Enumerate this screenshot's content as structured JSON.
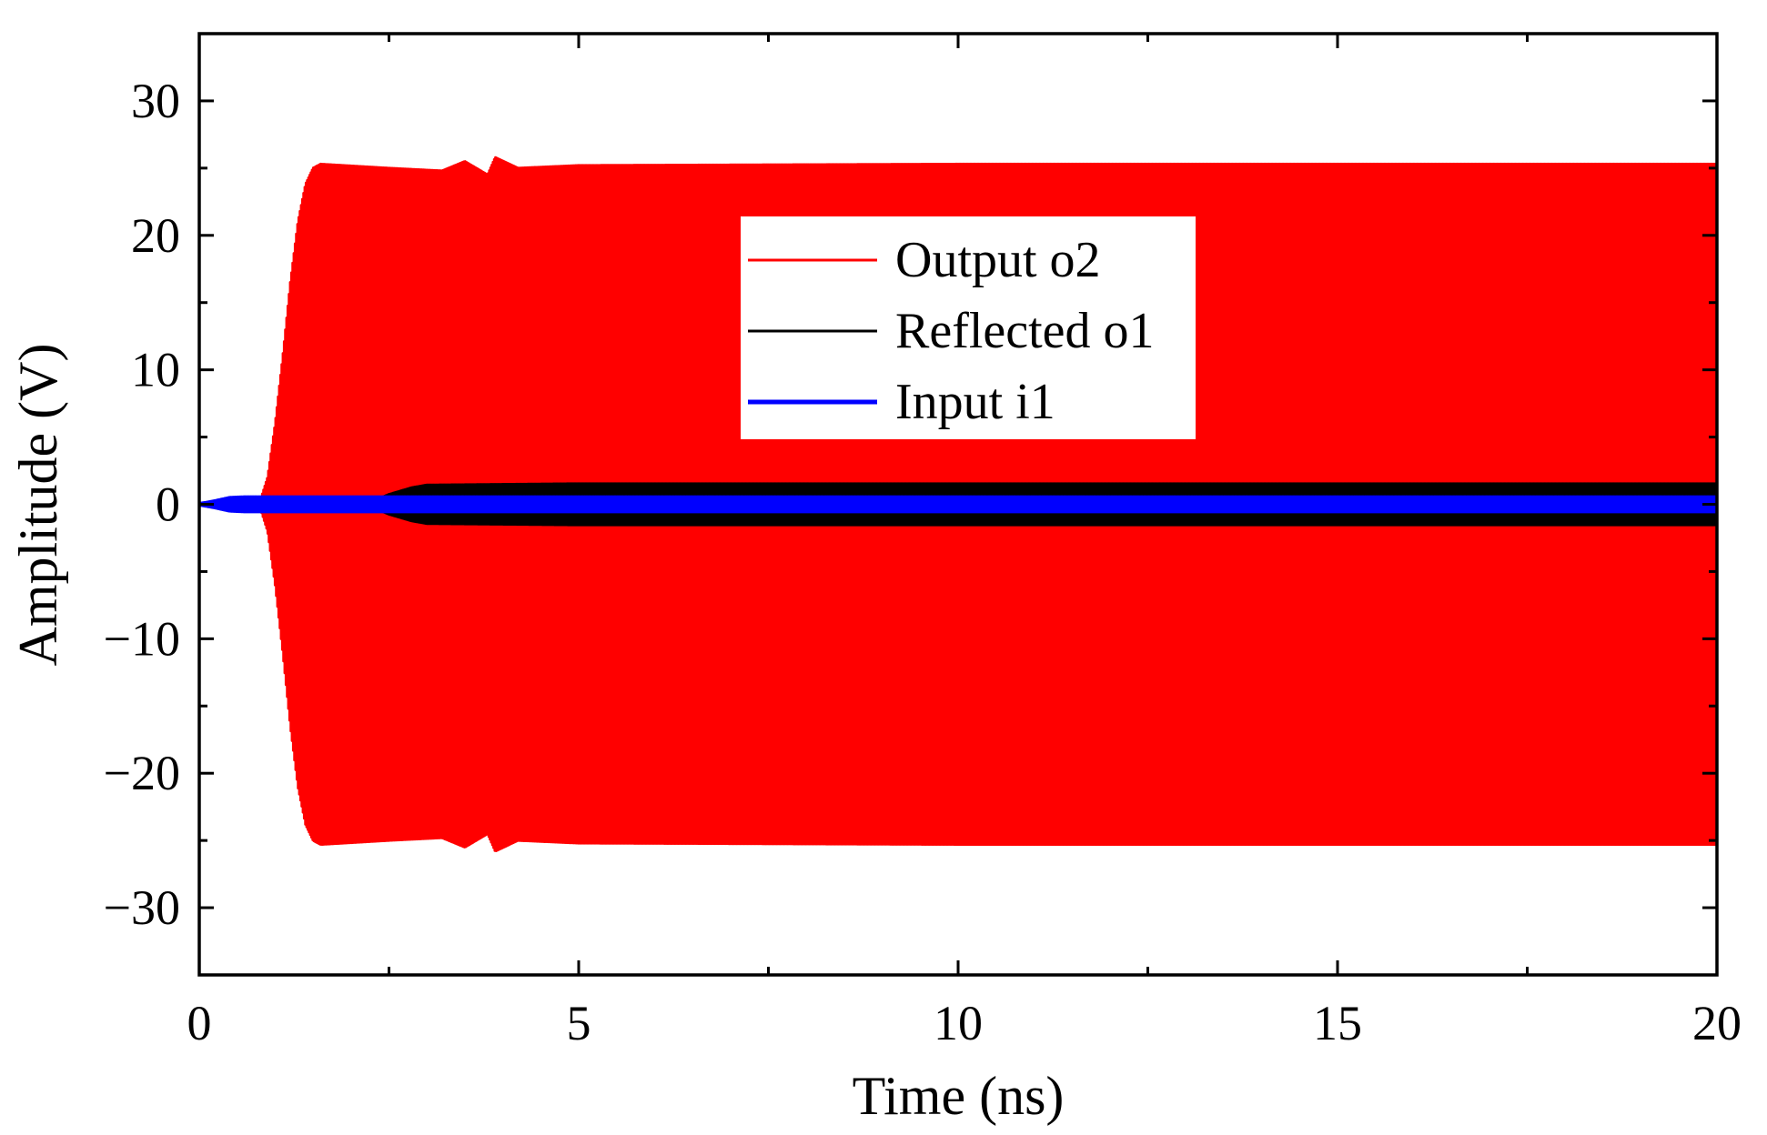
{
  "chart_data": {
    "type": "line",
    "title": "",
    "xlabel": "Time (ns)",
    "ylabel": "Amplitude (V)",
    "xlim": [
      0,
      20
    ],
    "ylim": [
      -35,
      35
    ],
    "xticks": [
      0,
      5,
      10,
      15,
      20
    ],
    "xtick_labels": [
      "0",
      "5",
      "10",
      "15",
      "20"
    ],
    "yticks": [
      -30,
      -20,
      -10,
      0,
      10,
      20,
      30
    ],
    "ytick_labels": [
      "−30",
      "−20",
      "−10",
      "0",
      "10",
      "20",
      "30"
    ],
    "grid": false,
    "legend_position": "center-top",
    "series": [
      {
        "name": "Output o2",
        "color": "#ff0000",
        "style": "dense-oscillation-envelope",
        "envelope": {
          "t": [
            0,
            0.8,
            0.9,
            1.0,
            1.1,
            1.2,
            1.3,
            1.4,
            1.5,
            1.6,
            2.5,
            3.2,
            3.5,
            3.8,
            3.9,
            4.2,
            5,
            10,
            15,
            20
          ],
          "upper": [
            0,
            0.2,
            2.0,
            6.0,
            11.0,
            16.5,
            21.0,
            23.8,
            25.0,
            25.3,
            25.0,
            24.8,
            25.5,
            24.5,
            25.8,
            25.0,
            25.2,
            25.3,
            25.3,
            25.3
          ],
          "lower": [
            0,
            -0.2,
            -2.0,
            -6.0,
            -11.0,
            -16.5,
            -21.0,
            -23.8,
            -25.0,
            -25.3,
            -25.0,
            -24.8,
            -25.5,
            -24.5,
            -25.8,
            -25.0,
            -25.2,
            -25.3,
            -25.3,
            -25.3
          ]
        }
      },
      {
        "name": "Reflected o1",
        "color": "#000000",
        "style": "dense-oscillation-envelope",
        "envelope": {
          "t": [
            0,
            2.2,
            2.5,
            2.8,
            3.0,
            5,
            10,
            15,
            20
          ],
          "upper": [
            0,
            0,
            0.7,
            1.2,
            1.4,
            1.5,
            1.5,
            1.5,
            1.5
          ],
          "lower": [
            0,
            0,
            -0.7,
            -1.2,
            -1.4,
            -1.5,
            -1.5,
            -1.5,
            -1.5
          ]
        }
      },
      {
        "name": "Input i1",
        "color": "#0000ff",
        "style": "dense-oscillation-envelope",
        "envelope": {
          "t": [
            0,
            0.2,
            0.4,
            0.6,
            20
          ],
          "upper": [
            0,
            0.2,
            0.45,
            0.5,
            0.5
          ],
          "lower": [
            0,
            -0.2,
            -0.45,
            -0.5,
            -0.5
          ]
        }
      }
    ]
  }
}
